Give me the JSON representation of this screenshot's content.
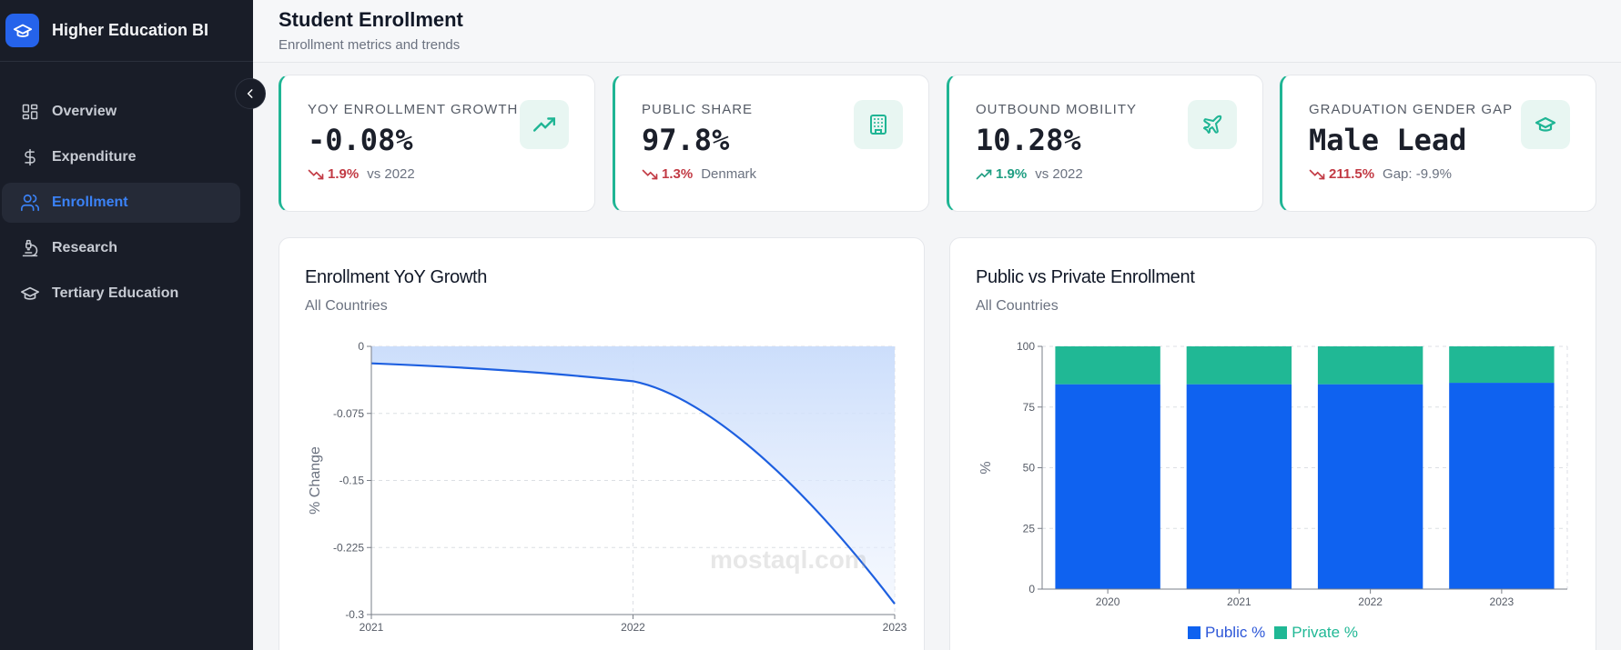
{
  "sidebar": {
    "brand": "Higher Education BI",
    "items": [
      {
        "label": "Overview",
        "icon": "grid-icon",
        "active": false
      },
      {
        "label": "Expenditure",
        "icon": "dollar-icon",
        "active": false
      },
      {
        "label": "Enrollment",
        "icon": "users-icon",
        "active": true
      },
      {
        "label": "Research",
        "icon": "microscope-icon",
        "active": false
      },
      {
        "label": "Tertiary Education",
        "icon": "graduation-cap-icon",
        "active": false
      }
    ]
  },
  "header": {
    "title": "Student Enrollment",
    "subtitle": "Enrollment metrics and trends"
  },
  "kpis": [
    {
      "label": "YOY ENROLLMENT GROWTH",
      "value": "-0.08%",
      "delta": "1.9%",
      "direction": "down",
      "context": "vs 2022",
      "icon": "trending-up-icon"
    },
    {
      "label": "PUBLIC SHARE",
      "value": "97.8%",
      "delta": "1.3%",
      "direction": "down",
      "context": "Denmark",
      "icon": "building-icon"
    },
    {
      "label": "OUTBOUND MOBILITY",
      "value": "10.28%",
      "delta": "1.9%",
      "direction": "up",
      "context": "vs 2022",
      "icon": "plane-icon"
    },
    {
      "label": "GRADUATION GENDER GAP",
      "value": "Male Lead",
      "delta": "211.5%",
      "direction": "down",
      "context": "Gap: -9.9%",
      "icon": "graduation-cap-icon"
    }
  ],
  "colors": {
    "accent_blue": "#0f62f0",
    "accent_teal": "#20b895",
    "negative": "#c23a44",
    "positive": "#1f9e82",
    "sidebar_bg": "#191d28"
  },
  "charts": {
    "yoy": {
      "title": "Enrollment YoY Growth",
      "subtitle": "All Countries",
      "ylabel": "% Change"
    },
    "pubpriv": {
      "title": "Public vs Private Enrollment",
      "subtitle": "All Countries",
      "ylabel": "%",
      "legend": [
        "Public %",
        "Private %"
      ]
    }
  },
  "watermark": "mostaql.com",
  "chart_data": [
    {
      "type": "area",
      "title": "Enrollment YoY Growth",
      "subtitle": "All Countries",
      "xlabel": "",
      "ylabel": "% Change",
      "categories": [
        "2021",
        "2022",
        "2023"
      ],
      "values": [
        -0.019,
        -0.039,
        -0.288
      ],
      "ylim": [
        -0.3,
        0
      ],
      "yticks": [
        0,
        -0.075,
        -0.15,
        -0.225,
        -0.3
      ],
      "grid": true,
      "fill": "to zero (top), gradient"
    },
    {
      "type": "bar",
      "stacked": true,
      "title": "Public vs Private Enrollment",
      "subtitle": "All Countries",
      "xlabel": "",
      "ylabel": "%",
      "categories": [
        "2020",
        "2021",
        "2022",
        "2023"
      ],
      "series": [
        {
          "name": "Public %",
          "values": [
            84.4,
            84.4,
            84.4,
            85.0
          ],
          "color": "#0f62f0"
        },
        {
          "name": "Private %",
          "values": [
            15.6,
            15.6,
            15.6,
            15.0
          ],
          "color": "#20b895"
        }
      ],
      "ylim": [
        0,
        100
      ],
      "yticks": [
        0,
        25,
        50,
        75,
        100
      ],
      "grid": true,
      "legend_position": "bottom"
    }
  ]
}
